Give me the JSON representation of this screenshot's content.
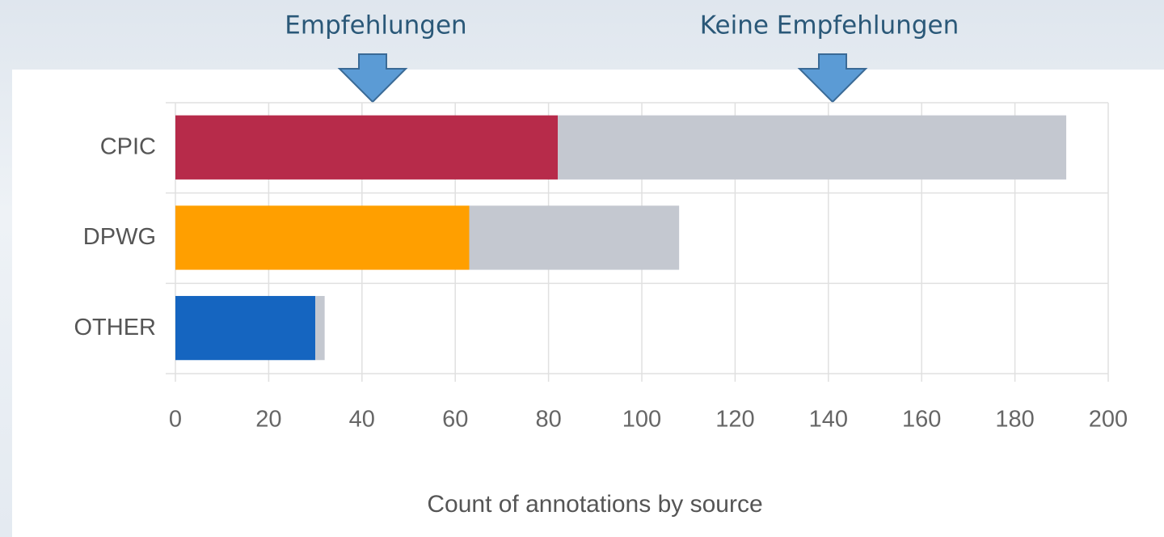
{
  "chart_data": {
    "type": "stacked-bar-horizontal",
    "title": "Count of annotations by source",
    "categories": [
      "CPIC",
      "DPWG",
      "OTHER"
    ],
    "series": [
      {
        "name": "Empfehlungen",
        "colors": [
          "#b72b4a",
          "#ff9f00",
          "#1565c0"
        ],
        "values": [
          82,
          63,
          30
        ]
      },
      {
        "name": "Keine Empfehlungen",
        "color": "#c4c8d0",
        "values": [
          109,
          45,
          2
        ]
      }
    ],
    "xlim": [
      0,
      200
    ],
    "xticks": [
      0,
      20,
      40,
      60,
      80,
      100,
      120,
      140,
      160,
      180,
      200
    ],
    "grid": true
  }
}
